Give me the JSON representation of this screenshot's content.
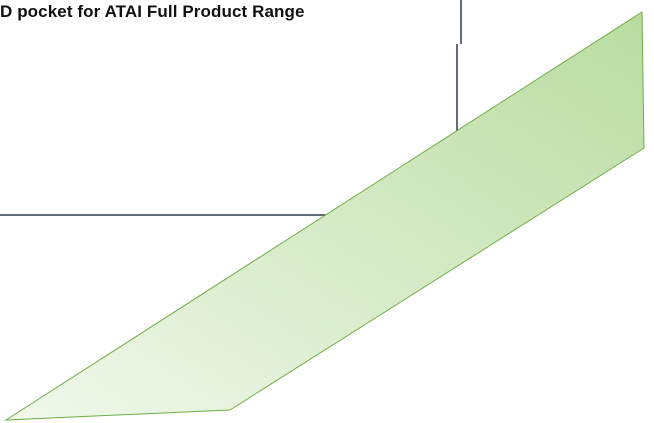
{
  "diagram": {
    "heading_text": "D pocket for ATAI Full Product Range",
    "colors": {
      "frame_line": "#2f3a4f",
      "shape_stroke": "#70ad47",
      "shape_fill_light": "#f1f8ec",
      "shape_fill_dark": "#b9dca0"
    },
    "shape": "parallelogram-banner"
  }
}
